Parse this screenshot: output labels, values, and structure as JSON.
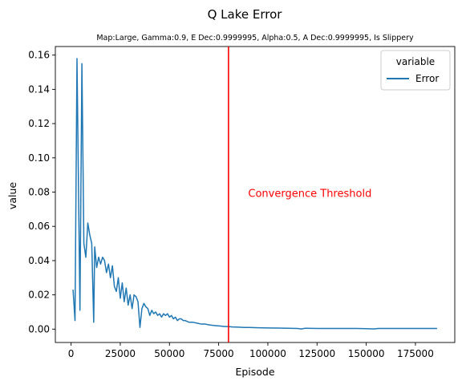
{
  "chart_data": {
    "type": "line",
    "title": "Q Lake Error",
    "subtitle": "Map:Large, Gamma:0.9, E Dec:0.9999995, Alpha:0.5, A Dec:0.9999995, Is Slippery",
    "xlabel": "Episode",
    "ylabel": "value",
    "xlim": [
      -8000,
      195000
    ],
    "ylim": [
      -0.0078,
      0.165
    ],
    "xticks": [
      0,
      25000,
      50000,
      75000,
      100000,
      125000,
      150000,
      175000
    ],
    "yticks": [
      0.0,
      0.02,
      0.04,
      0.06,
      0.08,
      0.1,
      0.12,
      0.14,
      0.16
    ],
    "ytick_labels": [
      "0.00",
      "0.02",
      "0.04",
      "0.06",
      "0.08",
      "0.10",
      "0.12",
      "0.14",
      "0.16"
    ],
    "grid": false,
    "legend": {
      "title": "variable",
      "placement": "top-right"
    },
    "series": [
      {
        "name": "Error",
        "color": "#1f77b4",
        "x": [
          1000,
          2000,
          3000,
          4500,
          5500,
          6500,
          7500,
          8500,
          9500,
          10500,
          11500,
          12000,
          13000,
          14000,
          15000,
          16000,
          17000,
          18000,
          19000,
          20000,
          21000,
          22000,
          23000,
          24000,
          25000,
          26000,
          27000,
          28000,
          29000,
          30000,
          31000,
          32000,
          33000,
          34000,
          35000,
          36000,
          37000,
          38000,
          39000,
          40000,
          41000,
          42000,
          43000,
          44000,
          45000,
          46000,
          47000,
          48000,
          49000,
          50000,
          51000,
          52000,
          53000,
          54000,
          55000,
          56000,
          57000,
          58000,
          60000,
          62000,
          64000,
          66000,
          68000,
          70000,
          72000,
          74000,
          76000,
          78000,
          80000,
          82000,
          84000,
          86000,
          88000,
          90000,
          92000,
          95000,
          100000,
          105000,
          110000,
          115000,
          117000,
          119000,
          125000,
          135000,
          145000,
          150000,
          154000,
          156000,
          160000,
          170000,
          180000,
          186000
        ],
        "values": [
          0.023,
          0.005,
          0.158,
          0.011,
          0.155,
          0.05,
          0.042,
          0.062,
          0.055,
          0.05,
          0.004,
          0.048,
          0.036,
          0.042,
          0.038,
          0.042,
          0.04,
          0.033,
          0.038,
          0.03,
          0.037,
          0.025,
          0.022,
          0.03,
          0.018,
          0.027,
          0.016,
          0.024,
          0.014,
          0.02,
          0.012,
          0.02,
          0.019,
          0.016,
          0.001,
          0.012,
          0.015,
          0.013,
          0.012,
          0.008,
          0.011,
          0.009,
          0.01,
          0.008,
          0.009,
          0.007,
          0.009,
          0.008,
          0.009,
          0.007,
          0.008,
          0.006,
          0.007,
          0.005,
          0.006,
          0.006,
          0.005,
          0.005,
          0.004,
          0.004,
          0.0035,
          0.003,
          0.003,
          0.0025,
          0.0022,
          0.002,
          0.0018,
          0.0015,
          0.0015,
          0.0013,
          0.0012,
          0.0011,
          0.001,
          0.001,
          0.0009,
          0.0008,
          0.0007,
          0.0006,
          0.0005,
          0.0004,
          0.0001,
          0.0005,
          0.0004,
          0.0004,
          0.0004,
          0.0003,
          0.0001,
          0.0004,
          0.0004,
          0.0004,
          0.0004,
          0.0004
        ]
      }
    ],
    "annotations": [
      {
        "text": "Convergence Threshold",
        "x": 90000,
        "y": 0.079,
        "color": "#ff0000"
      }
    ],
    "vlines": [
      {
        "x": 80000,
        "color": "#ff0000"
      }
    ]
  }
}
